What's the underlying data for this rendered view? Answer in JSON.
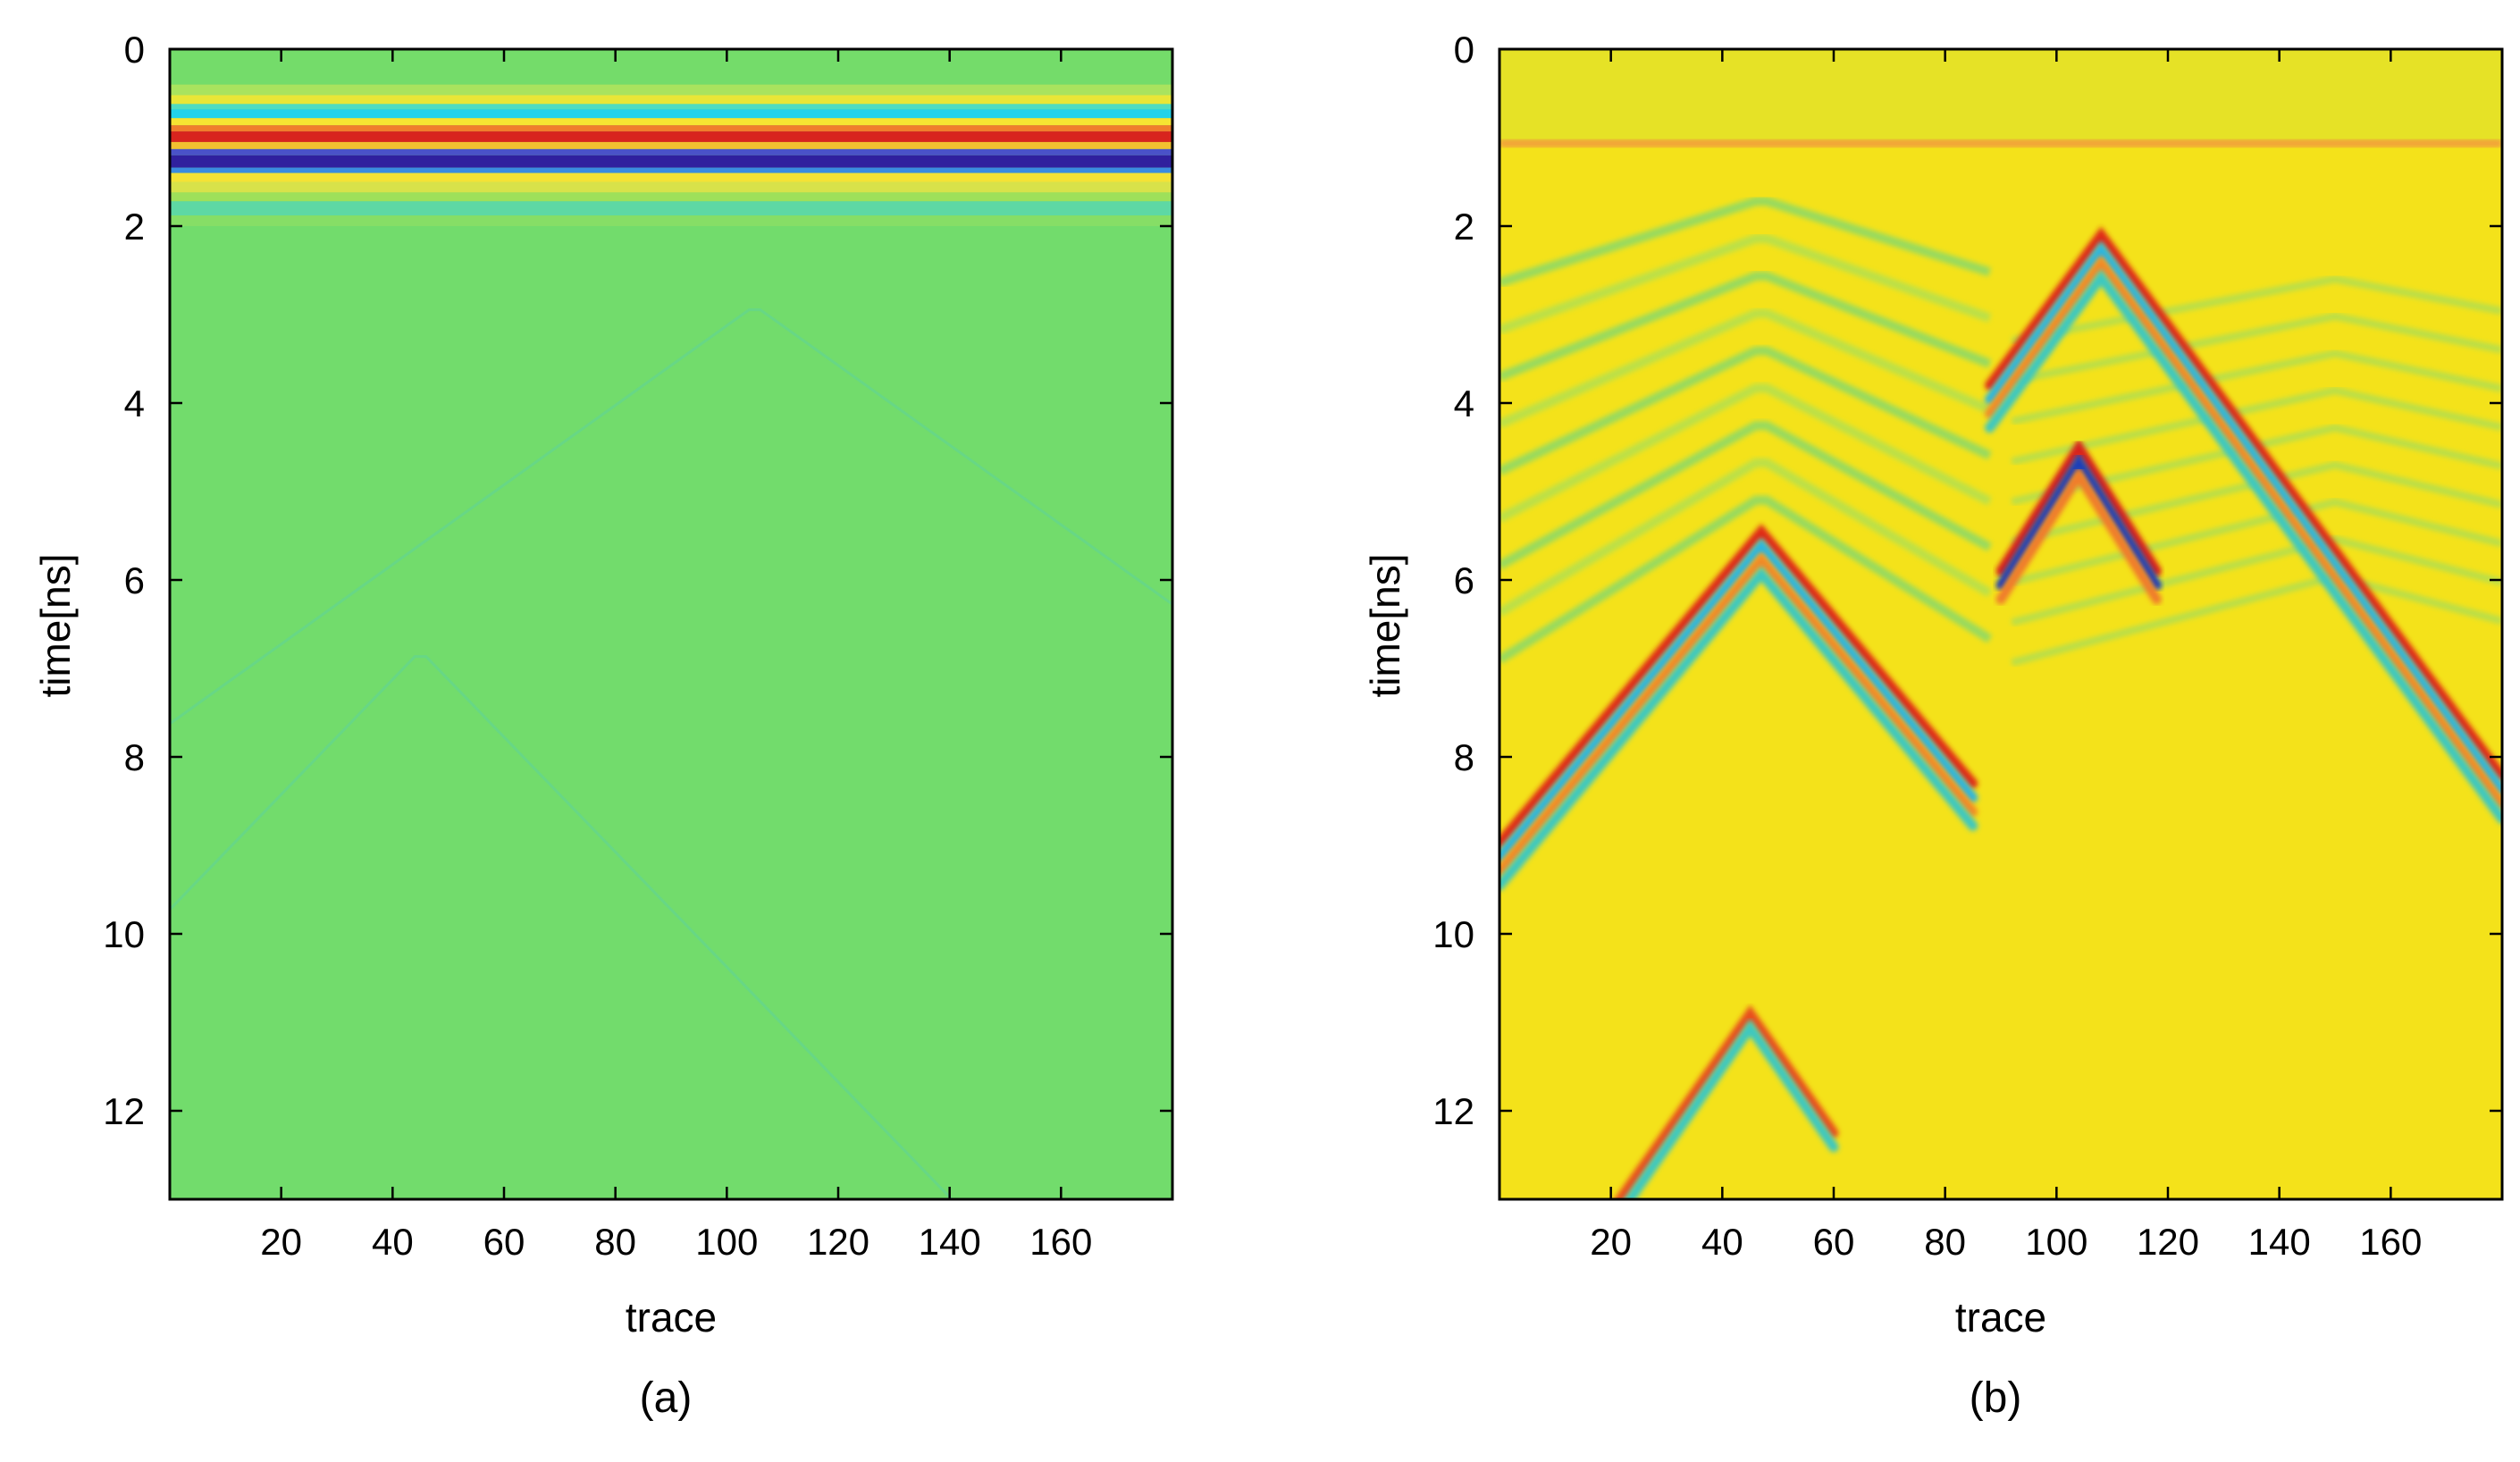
{
  "chart_data": [
    {
      "type": "heatmap",
      "panel_label": "(a)",
      "xlabel": "trace",
      "ylabel": "time[ns]",
      "xlim": [
        0,
        180
      ],
      "ylim": [
        13,
        0
      ],
      "xticks": [
        20,
        40,
        60,
        80,
        100,
        120,
        140,
        160
      ],
      "yticks": [
        0,
        2,
        4,
        6,
        8,
        10,
        12
      ],
      "background_color": "#72dc6c",
      "bands": [
        {
          "t0": 0.0,
          "t1": 0.4,
          "color": "#74dc6a"
        },
        {
          "t0": 0.4,
          "t1": 0.52,
          "color": "#a9e35e"
        },
        {
          "t0": 0.52,
          "t1": 0.62,
          "color": "#e9e637"
        },
        {
          "t0": 0.62,
          "t1": 0.68,
          "color": "#50dcc0"
        },
        {
          "t0": 0.68,
          "t1": 0.78,
          "color": "#22d2ea"
        },
        {
          "t0": 0.78,
          "t1": 0.86,
          "color": "#f6e432"
        },
        {
          "t0": 0.86,
          "t1": 0.93,
          "color": "#f07d2c"
        },
        {
          "t0": 0.93,
          "t1": 1.05,
          "color": "#d8241e"
        },
        {
          "t0": 1.05,
          "t1": 1.13,
          "color": "#f2c030"
        },
        {
          "t0": 1.13,
          "t1": 1.2,
          "color": "#4a52c8"
        },
        {
          "t0": 1.2,
          "t1": 1.34,
          "color": "#30209e"
        },
        {
          "t0": 1.34,
          "t1": 1.4,
          "color": "#3a8ce0"
        },
        {
          "t0": 1.4,
          "t1": 1.5,
          "color": "#f4e236"
        },
        {
          "t0": 1.5,
          "t1": 1.62,
          "color": "#d8e24a"
        },
        {
          "t0": 1.62,
          "t1": 1.72,
          "color": "#9ee05a"
        },
        {
          "t0": 1.72,
          "t1": 1.88,
          "color": "#5ed8a4"
        },
        {
          "t0": 1.88,
          "t1": 2.0,
          "color": "#86de66"
        }
      ],
      "faint_hyperbolas": [
        {
          "apex_trace": 45,
          "apex_time": 6.8,
          "slope": 0.065,
          "color": "#5fd49a"
        },
        {
          "apex_trace": 105,
          "apex_time": 2.9,
          "slope": 0.045,
          "color": "#5fd49a"
        }
      ]
    },
    {
      "type": "heatmap",
      "panel_label": "(b)",
      "xlabel": "trace",
      "ylabel": "time[ns]",
      "xlim": [
        0,
        180
      ],
      "ylim": [
        13,
        0
      ],
      "xticks": [
        20,
        40,
        60,
        80,
        100,
        120,
        140,
        160
      ],
      "yticks": [
        2,
        4,
        6,
        8,
        10,
        12
      ],
      "top_ytick_label": "0",
      "background_color": "#f4e21a",
      "direct_wave_time": 1.05,
      "hyperbolas": [
        {
          "apex_trace": 47,
          "apex_time": 5.45,
          "slope": 0.075,
          "trace_range": [
            0,
            85
          ],
          "colors": [
            "#e02a18",
            "#2ab6e0",
            "#f28a26",
            "#3cc8c0"
          ]
        },
        {
          "apex_trace": 108,
          "apex_time": 2.1,
          "slope": 0.085,
          "trace_range": [
            88,
            180
          ],
          "colors": [
            "#e02a18",
            "#2ab6e0",
            "#f28a26",
            "#3cc8c0"
          ]
        },
        {
          "apex_trace": 104,
          "apex_time": 4.5,
          "slope": 0.1,
          "trace_range": [
            90,
            118
          ],
          "colors": [
            "#d8241e",
            "#1a3cb8",
            "#f07d2c"
          ]
        },
        {
          "apex_trace": 45,
          "apex_time": 10.9,
          "slope": 0.09,
          "trace_range": [
            0,
            60
          ],
          "colors": [
            "#e8501e",
            "#3cc8c0"
          ]
        }
      ],
      "ringing_arcs": {
        "apex_trace": 47,
        "first_time": 1.7,
        "spacing": 0.42,
        "count": 9,
        "slope": 0.02
      }
    }
  ]
}
